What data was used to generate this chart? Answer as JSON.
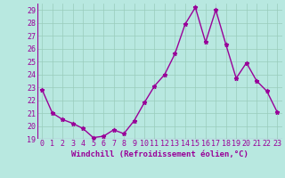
{
  "x": [
    0,
    1,
    2,
    3,
    4,
    5,
    6,
    7,
    8,
    9,
    10,
    11,
    12,
    13,
    14,
    15,
    16,
    17,
    18,
    19,
    20,
    21,
    22,
    23
  ],
  "y": [
    22.8,
    21.0,
    20.5,
    20.2,
    19.8,
    19.1,
    19.2,
    19.7,
    19.4,
    20.4,
    21.8,
    23.1,
    24.0,
    25.6,
    27.9,
    29.2,
    26.5,
    29.0,
    26.3,
    23.7,
    24.9,
    23.5,
    22.7,
    21.1
  ],
  "line_color": "#990099",
  "marker": "*",
  "bg_color": "#b8e8e0",
  "grid_color": "#99ccbb",
  "xlabel": "Windchill (Refroidissement éolien,°C)",
  "xlim": [
    -0.5,
    23.5
  ],
  "ylim": [
    19,
    29.5
  ],
  "yticks": [
    19,
    20,
    21,
    22,
    23,
    24,
    25,
    26,
    27,
    28,
    29
  ],
  "xticks": [
    0,
    1,
    2,
    3,
    4,
    5,
    6,
    7,
    8,
    9,
    10,
    11,
    12,
    13,
    14,
    15,
    16,
    17,
    18,
    19,
    20,
    21,
    22,
    23
  ],
  "xlabel_fontsize": 6.5,
  "tick_fontsize": 6.0,
  "line_width": 1.0,
  "marker_size": 3.5
}
